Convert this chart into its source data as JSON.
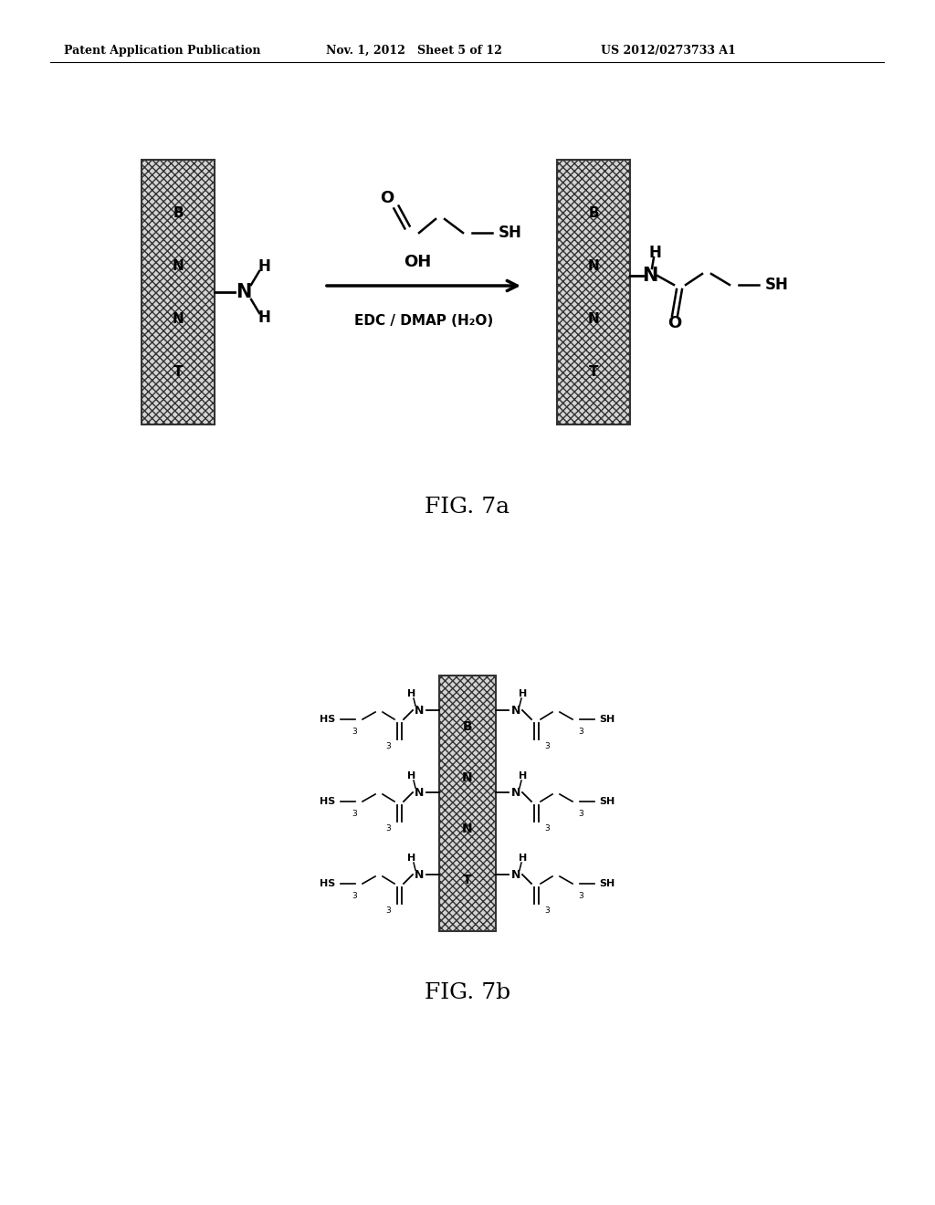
{
  "bg_color": "#ffffff",
  "header_left": "Patent Application Publication",
  "header_mid": "Nov. 1, 2012   Sheet 5 of 12",
  "header_right": "US 2012/0273733 A1",
  "fig7a_label": "FIG. 7a",
  "fig7b_label": "FIG. 7b",
  "bnnt_letters": [
    "B",
    "N",
    "N",
    "T"
  ],
  "hatch_pattern": "xxxx",
  "tube_face": "#d4d4d4",
  "tube_edge": "#555555"
}
